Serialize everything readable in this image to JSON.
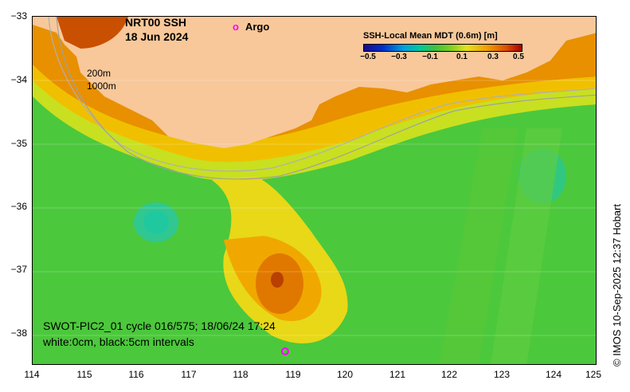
{
  "title": {
    "line1": "NRT00 SSH",
    "line2": "18 Jun 2024"
  },
  "argo_legend": {
    "marker": "o",
    "label": "Argo"
  },
  "colorbar": {
    "title": "SSH-Local Mean MDT (0.6m) [m]",
    "ticks": [
      "−0.5",
      "−0.3",
      "−0.1",
      "0.1",
      "0.3",
      "0.5"
    ]
  },
  "isobaths": [
    "200m",
    "1000m"
  ],
  "axes": {
    "lon_ticks": [
      "114",
      "115",
      "116",
      "117",
      "118",
      "119",
      "120",
      "121",
      "122",
      "123",
      "124",
      "125"
    ],
    "lat_ticks": [
      "−33",
      "−34",
      "−35",
      "−36",
      "−37",
      "−38"
    ],
    "lon_range": [
      114,
      125
    ],
    "lat_range": [
      -38.5,
      -33
    ]
  },
  "swot_info": {
    "line1": "SWOT-PIC2_01 cycle 016/575; 18/06/24 17:24",
    "line2": "white:0cm, black:5cm intervals"
  },
  "credit": "© IMOS 10-Sep-2025 12:37 Hobart",
  "colors": {
    "land": "#f8c89a",
    "argo": "#ff00ff"
  }
}
